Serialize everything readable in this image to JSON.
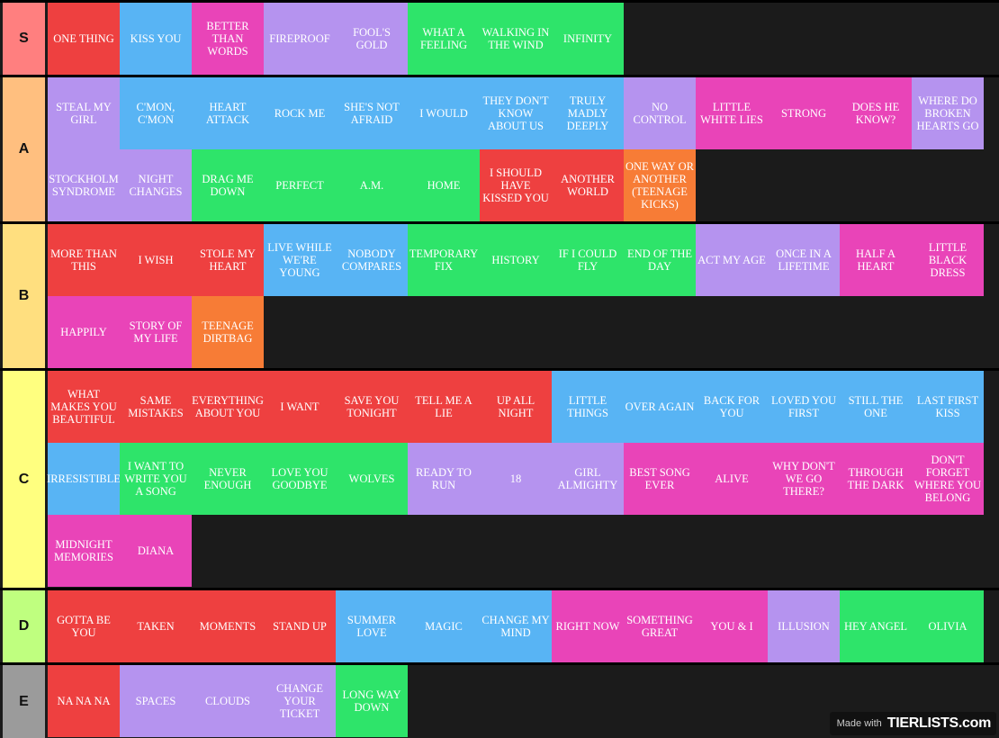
{
  "tiers": [
    {
      "label": "S",
      "color": "#ff7f7f",
      "items": [
        {
          "text": "ONE THING",
          "color": "red"
        },
        {
          "text": "KISS YOU",
          "color": "blue"
        },
        {
          "text": "BETTER THAN WORDS",
          "color": "pink"
        },
        {
          "text": "FIREPROOF",
          "color": "purple"
        },
        {
          "text": "FOOL'S GOLD",
          "color": "purple"
        },
        {
          "text": "WHAT A FEELING",
          "color": "green"
        },
        {
          "text": "WALKING IN THE WIND",
          "color": "green"
        },
        {
          "text": "INFINITY",
          "color": "green"
        }
      ]
    },
    {
      "label": "A",
      "color": "#ffbf7f",
      "items": [
        {
          "text": "STEAL MY GIRL",
          "color": "purple"
        },
        {
          "text": "C'MON, C'MON",
          "color": "blue"
        },
        {
          "text": "HEART ATTACK",
          "color": "blue"
        },
        {
          "text": "ROCK ME",
          "color": "blue"
        },
        {
          "text": "SHE'S NOT AFRAID",
          "color": "blue"
        },
        {
          "text": "I WOULD",
          "color": "blue"
        },
        {
          "text": "THEY DON'T KNOW ABOUT US",
          "color": "blue"
        },
        {
          "text": "TRULY MADLY DEEPLY",
          "color": "blue"
        },
        {
          "text": "NO CONTROL",
          "color": "purple"
        },
        {
          "text": "LITTLE WHITE LIES",
          "color": "pink"
        },
        {
          "text": "STRONG",
          "color": "pink"
        },
        {
          "text": "DOES HE KNOW?",
          "color": "pink"
        },
        {
          "text": "WHERE DO BROKEN HEARTS GO",
          "color": "purple"
        },
        {
          "text": "STOCKHOLM SYNDROME",
          "color": "purple"
        },
        {
          "text": "NIGHT CHANGES",
          "color": "purple"
        },
        {
          "text": "DRAG ME DOWN",
          "color": "green"
        },
        {
          "text": "PERFECT",
          "color": "green"
        },
        {
          "text": "A.M.",
          "color": "green"
        },
        {
          "text": "HOME",
          "color": "green"
        },
        {
          "text": "I SHOULD HAVE KISSED YOU",
          "color": "red"
        },
        {
          "text": "ANOTHER WORLD",
          "color": "red"
        },
        {
          "text": "ONE WAY OR ANOTHER (TEENAGE KICKS)",
          "color": "orange"
        }
      ]
    },
    {
      "label": "B",
      "color": "#ffdf7f",
      "items": [
        {
          "text": "MORE THAN THIS",
          "color": "red"
        },
        {
          "text": "I WISH",
          "color": "red"
        },
        {
          "text": "STOLE MY HEART",
          "color": "red"
        },
        {
          "text": "LIVE WHILE WE'RE YOUNG",
          "color": "blue"
        },
        {
          "text": "NOBODY COMPARES",
          "color": "blue"
        },
        {
          "text": "TEMPORARY FIX",
          "color": "green"
        },
        {
          "text": "HISTORY",
          "color": "green"
        },
        {
          "text": "IF I COULD FLY",
          "color": "green"
        },
        {
          "text": "END OF THE DAY",
          "color": "green"
        },
        {
          "text": "ACT MY AGE",
          "color": "purple"
        },
        {
          "text": "ONCE IN A LIFETIME",
          "color": "purple"
        },
        {
          "text": "HALF A HEART",
          "color": "pink"
        },
        {
          "text": "LITTLE BLACK DRESS",
          "color": "pink"
        },
        {
          "text": "HAPPILY",
          "color": "pink"
        },
        {
          "text": "STORY OF MY LIFE",
          "color": "pink"
        },
        {
          "text": "TEENAGE DIRTBAG",
          "color": "orange"
        }
      ]
    },
    {
      "label": "C",
      "color": "#ffff7f",
      "items": [
        {
          "text": "WHAT MAKES YOU BEAUTIFUL",
          "color": "red"
        },
        {
          "text": "SAME MISTAKES",
          "color": "red"
        },
        {
          "text": "EVERYTHING ABOUT YOU",
          "color": "red"
        },
        {
          "text": "I WANT",
          "color": "red"
        },
        {
          "text": "SAVE YOU TONIGHT",
          "color": "red"
        },
        {
          "text": "TELL ME A LIE",
          "color": "red"
        },
        {
          "text": "UP ALL NIGHT",
          "color": "red"
        },
        {
          "text": "LITTLE THINGS",
          "color": "blue"
        },
        {
          "text": "OVER AGAIN",
          "color": "blue"
        },
        {
          "text": "BACK FOR YOU",
          "color": "blue"
        },
        {
          "text": "LOVED YOU FIRST",
          "color": "blue"
        },
        {
          "text": "STILL THE ONE",
          "color": "blue"
        },
        {
          "text": "LAST FIRST KISS",
          "color": "blue"
        },
        {
          "text": "IRRESISTIBLE",
          "color": "blue"
        },
        {
          "text": "I WANT TO WRITE YOU A SONG",
          "color": "green"
        },
        {
          "text": "NEVER ENOUGH",
          "color": "green"
        },
        {
          "text": "LOVE YOU GOODBYE",
          "color": "green"
        },
        {
          "text": "WOLVES",
          "color": "green"
        },
        {
          "text": "READY TO RUN",
          "color": "purple"
        },
        {
          "text": "18",
          "color": "purple"
        },
        {
          "text": "GIRL ALMIGHTY",
          "color": "purple"
        },
        {
          "text": "BEST SONG EVER",
          "color": "pink"
        },
        {
          "text": "ALIVE",
          "color": "pink"
        },
        {
          "text": "WHY DON'T WE GO THERE?",
          "color": "pink"
        },
        {
          "text": "THROUGH THE DARK",
          "color": "pink"
        },
        {
          "text": "DON'T FORGET WHERE YOU BELONG",
          "color": "pink"
        },
        {
          "text": "MIDNIGHT MEMORIES",
          "color": "pink"
        },
        {
          "text": "DIANA",
          "color": "pink"
        }
      ]
    },
    {
      "label": "D",
      "color": "#bfff7f",
      "items": [
        {
          "text": "GOTTA BE YOU",
          "color": "red"
        },
        {
          "text": "TAKEN",
          "color": "red"
        },
        {
          "text": "MOMENTS",
          "color": "red"
        },
        {
          "text": "STAND UP",
          "color": "red"
        },
        {
          "text": "SUMMER LOVE",
          "color": "blue"
        },
        {
          "text": "MAGIC",
          "color": "blue"
        },
        {
          "text": "CHANGE MY MIND",
          "color": "blue"
        },
        {
          "text": "RIGHT NOW",
          "color": "pink"
        },
        {
          "text": "SOMETHING GREAT",
          "color": "pink"
        },
        {
          "text": "YOU & I",
          "color": "pink"
        },
        {
          "text": "ILLUSION",
          "color": "purple"
        },
        {
          "text": "HEY ANGEL",
          "color": "green"
        },
        {
          "text": "OLIVIA",
          "color": "green"
        }
      ]
    },
    {
      "label": "E",
      "color": "#9b9b9b",
      "items": [
        {
          "text": "NA NA NA",
          "color": "red"
        },
        {
          "text": "SPACES",
          "color": "purple"
        },
        {
          "text": "CLOUDS",
          "color": "purple"
        },
        {
          "text": "CHANGE YOUR TICKET",
          "color": "purple"
        },
        {
          "text": "LONG WAY DOWN",
          "color": "green"
        }
      ]
    }
  ],
  "watermark": {
    "made_with": "Made with",
    "brand": "TIERLISTS.com"
  }
}
